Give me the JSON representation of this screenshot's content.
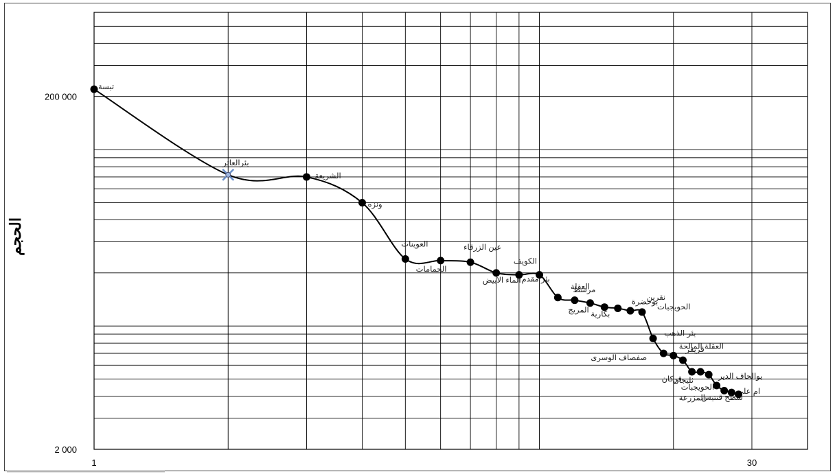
{
  "chart_data": {
    "type": "line",
    "title": "",
    "xlabel": "",
    "ylabel": "الحجم",
    "x_scale": "log",
    "y_scale": "log",
    "xlim": [
      1,
      40
    ],
    "ylim": [
      2000,
      600000
    ],
    "x_tick_labels": [
      {
        "value": 1,
        "label": "1"
      },
      {
        "value": 30,
        "label": "30"
      }
    ],
    "y_tick_labels": [
      {
        "value": 2000,
        "label": "2 000"
      },
      {
        "value": 200000,
        "label": "200 000"
      }
    ],
    "grid": true,
    "legend": "none",
    "series": [
      {
        "points": [
          {
            "x": 1,
            "y": 220000,
            "label": "تبسة"
          },
          {
            "x": 2,
            "y": 72000,
            "label": "بئرالعاتر"
          },
          {
            "x": 3,
            "y": 70000,
            "label": "الشريعة"
          },
          {
            "x": 4,
            "y": 50000,
            "label": "ونزة"
          },
          {
            "x": 5,
            "y": 24000,
            "label": "العوينات"
          },
          {
            "x": 6,
            "y": 23500,
            "label": "الحمامات"
          },
          {
            "x": 7,
            "y": 23000,
            "label": "عين الزرقاء"
          },
          {
            "x": 8,
            "y": 20000,
            "label": "الماء الابيض"
          },
          {
            "x": 9,
            "y": 19500,
            "label": "الكويف"
          },
          {
            "x": 10,
            "y": 19500,
            "label": "بئر مقدم"
          },
          {
            "x": 11,
            "y": 14500,
            "label": "مرسط"
          },
          {
            "x": 12,
            "y": 14000,
            "label": "العقلة"
          },
          {
            "x": 13,
            "y": 13500,
            "label": "المريج"
          },
          {
            "x": 14,
            "y": 12800,
            "label": "بكارية"
          },
          {
            "x": 15,
            "y": 12600,
            "label": "بوخضرة"
          },
          {
            "x": 16,
            "y": 12200,
            "label": "نقرين"
          },
          {
            "x": 17,
            "y": 12000,
            "label": "الحويجبات"
          },
          {
            "x": 18,
            "y": 8500,
            "label": "بئر الذهب"
          },
          {
            "x": 19,
            "y": 7000,
            "label": "صفصاف الوسرى"
          },
          {
            "x": 20,
            "y": 6800,
            "label": "العقلة المالحة"
          },
          {
            "x": 21,
            "y": 6400,
            "label": "قريقر"
          },
          {
            "x": 22,
            "y": 5500,
            "label": "فركان"
          },
          {
            "x": 23,
            "y": 5500,
            "label": "ثليجان"
          },
          {
            "x": 24,
            "y": 5300,
            "label": "بوالحاف الدير"
          },
          {
            "x": 25,
            "y": 4600,
            "label": "الحويجبات"
          },
          {
            "x": 26,
            "y": 4300,
            "label": "المزرعة"
          },
          {
            "x": 27,
            "y": 4200,
            "label": "ام علي"
          },
          {
            "x": 28,
            "y": 4100,
            "label": "سطح قنتيس"
          }
        ]
      }
    ]
  }
}
